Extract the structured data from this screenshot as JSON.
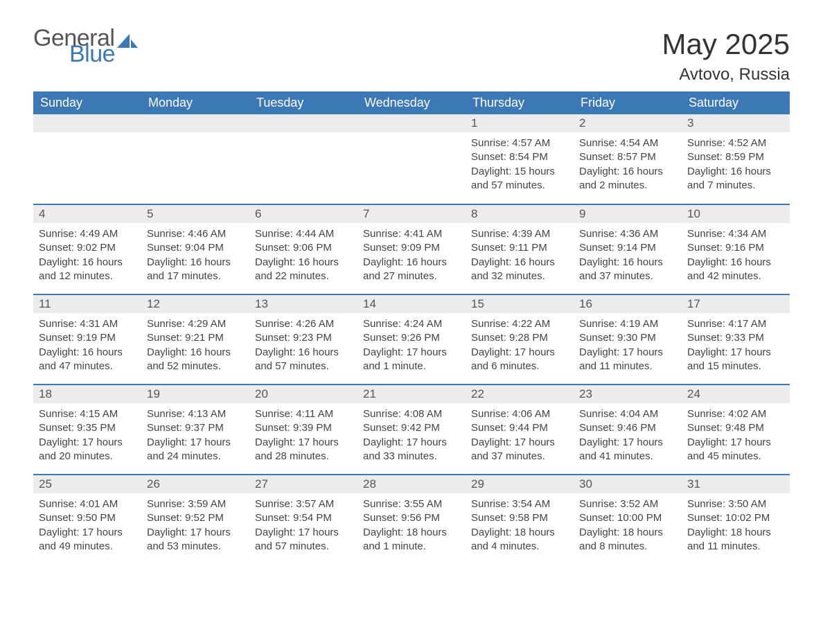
{
  "logo": {
    "text_general": "General",
    "text_blue": "Blue"
  },
  "header": {
    "title": "May 2025",
    "location": "Avtovo, Russia"
  },
  "colors": {
    "header_bg": "#3b78b5",
    "header_text": "#ffffff",
    "daynum_bg": "#ececec",
    "daynum_text": "#555555",
    "body_text": "#444444",
    "rule": "#3b78b5",
    "logo_blue": "#3b78b5",
    "logo_gray": "#555555"
  },
  "weekdays": [
    "Sunday",
    "Monday",
    "Tuesday",
    "Wednesday",
    "Thursday",
    "Friday",
    "Saturday"
  ],
  "weeks": [
    [
      {
        "blank": true
      },
      {
        "blank": true
      },
      {
        "blank": true
      },
      {
        "blank": true
      },
      {
        "day": "1",
        "sunrise": "Sunrise: 4:57 AM",
        "sunset": "Sunset: 8:54 PM",
        "daylight": "Daylight: 15 hours and 57 minutes."
      },
      {
        "day": "2",
        "sunrise": "Sunrise: 4:54 AM",
        "sunset": "Sunset: 8:57 PM",
        "daylight": "Daylight: 16 hours and 2 minutes."
      },
      {
        "day": "3",
        "sunrise": "Sunrise: 4:52 AM",
        "sunset": "Sunset: 8:59 PM",
        "daylight": "Daylight: 16 hours and 7 minutes."
      }
    ],
    [
      {
        "day": "4",
        "sunrise": "Sunrise: 4:49 AM",
        "sunset": "Sunset: 9:02 PM",
        "daylight": "Daylight: 16 hours and 12 minutes."
      },
      {
        "day": "5",
        "sunrise": "Sunrise: 4:46 AM",
        "sunset": "Sunset: 9:04 PM",
        "daylight": "Daylight: 16 hours and 17 minutes."
      },
      {
        "day": "6",
        "sunrise": "Sunrise: 4:44 AM",
        "sunset": "Sunset: 9:06 PM",
        "daylight": "Daylight: 16 hours and 22 minutes."
      },
      {
        "day": "7",
        "sunrise": "Sunrise: 4:41 AM",
        "sunset": "Sunset: 9:09 PM",
        "daylight": "Daylight: 16 hours and 27 minutes."
      },
      {
        "day": "8",
        "sunrise": "Sunrise: 4:39 AM",
        "sunset": "Sunset: 9:11 PM",
        "daylight": "Daylight: 16 hours and 32 minutes."
      },
      {
        "day": "9",
        "sunrise": "Sunrise: 4:36 AM",
        "sunset": "Sunset: 9:14 PM",
        "daylight": "Daylight: 16 hours and 37 minutes."
      },
      {
        "day": "10",
        "sunrise": "Sunrise: 4:34 AM",
        "sunset": "Sunset: 9:16 PM",
        "daylight": "Daylight: 16 hours and 42 minutes."
      }
    ],
    [
      {
        "day": "11",
        "sunrise": "Sunrise: 4:31 AM",
        "sunset": "Sunset: 9:19 PM",
        "daylight": "Daylight: 16 hours and 47 minutes."
      },
      {
        "day": "12",
        "sunrise": "Sunrise: 4:29 AM",
        "sunset": "Sunset: 9:21 PM",
        "daylight": "Daylight: 16 hours and 52 minutes."
      },
      {
        "day": "13",
        "sunrise": "Sunrise: 4:26 AM",
        "sunset": "Sunset: 9:23 PM",
        "daylight": "Daylight: 16 hours and 57 minutes."
      },
      {
        "day": "14",
        "sunrise": "Sunrise: 4:24 AM",
        "sunset": "Sunset: 9:26 PM",
        "daylight": "Daylight: 17 hours and 1 minute."
      },
      {
        "day": "15",
        "sunrise": "Sunrise: 4:22 AM",
        "sunset": "Sunset: 9:28 PM",
        "daylight": "Daylight: 17 hours and 6 minutes."
      },
      {
        "day": "16",
        "sunrise": "Sunrise: 4:19 AM",
        "sunset": "Sunset: 9:30 PM",
        "daylight": "Daylight: 17 hours and 11 minutes."
      },
      {
        "day": "17",
        "sunrise": "Sunrise: 4:17 AM",
        "sunset": "Sunset: 9:33 PM",
        "daylight": "Daylight: 17 hours and 15 minutes."
      }
    ],
    [
      {
        "day": "18",
        "sunrise": "Sunrise: 4:15 AM",
        "sunset": "Sunset: 9:35 PM",
        "daylight": "Daylight: 17 hours and 20 minutes."
      },
      {
        "day": "19",
        "sunrise": "Sunrise: 4:13 AM",
        "sunset": "Sunset: 9:37 PM",
        "daylight": "Daylight: 17 hours and 24 minutes."
      },
      {
        "day": "20",
        "sunrise": "Sunrise: 4:11 AM",
        "sunset": "Sunset: 9:39 PM",
        "daylight": "Daylight: 17 hours and 28 minutes."
      },
      {
        "day": "21",
        "sunrise": "Sunrise: 4:08 AM",
        "sunset": "Sunset: 9:42 PM",
        "daylight": "Daylight: 17 hours and 33 minutes."
      },
      {
        "day": "22",
        "sunrise": "Sunrise: 4:06 AM",
        "sunset": "Sunset: 9:44 PM",
        "daylight": "Daylight: 17 hours and 37 minutes."
      },
      {
        "day": "23",
        "sunrise": "Sunrise: 4:04 AM",
        "sunset": "Sunset: 9:46 PM",
        "daylight": "Daylight: 17 hours and 41 minutes."
      },
      {
        "day": "24",
        "sunrise": "Sunrise: 4:02 AM",
        "sunset": "Sunset: 9:48 PM",
        "daylight": "Daylight: 17 hours and 45 minutes."
      }
    ],
    [
      {
        "day": "25",
        "sunrise": "Sunrise: 4:01 AM",
        "sunset": "Sunset: 9:50 PM",
        "daylight": "Daylight: 17 hours and 49 minutes."
      },
      {
        "day": "26",
        "sunrise": "Sunrise: 3:59 AM",
        "sunset": "Sunset: 9:52 PM",
        "daylight": "Daylight: 17 hours and 53 minutes."
      },
      {
        "day": "27",
        "sunrise": "Sunrise: 3:57 AM",
        "sunset": "Sunset: 9:54 PM",
        "daylight": "Daylight: 17 hours and 57 minutes."
      },
      {
        "day": "28",
        "sunrise": "Sunrise: 3:55 AM",
        "sunset": "Sunset: 9:56 PM",
        "daylight": "Daylight: 18 hours and 1 minute."
      },
      {
        "day": "29",
        "sunrise": "Sunrise: 3:54 AM",
        "sunset": "Sunset: 9:58 PM",
        "daylight": "Daylight: 18 hours and 4 minutes."
      },
      {
        "day": "30",
        "sunrise": "Sunrise: 3:52 AM",
        "sunset": "Sunset: 10:00 PM",
        "daylight": "Daylight: 18 hours and 8 minutes."
      },
      {
        "day": "31",
        "sunrise": "Sunrise: 3:50 AM",
        "sunset": "Sunset: 10:02 PM",
        "daylight": "Daylight: 18 hours and 11 minutes."
      }
    ]
  ]
}
